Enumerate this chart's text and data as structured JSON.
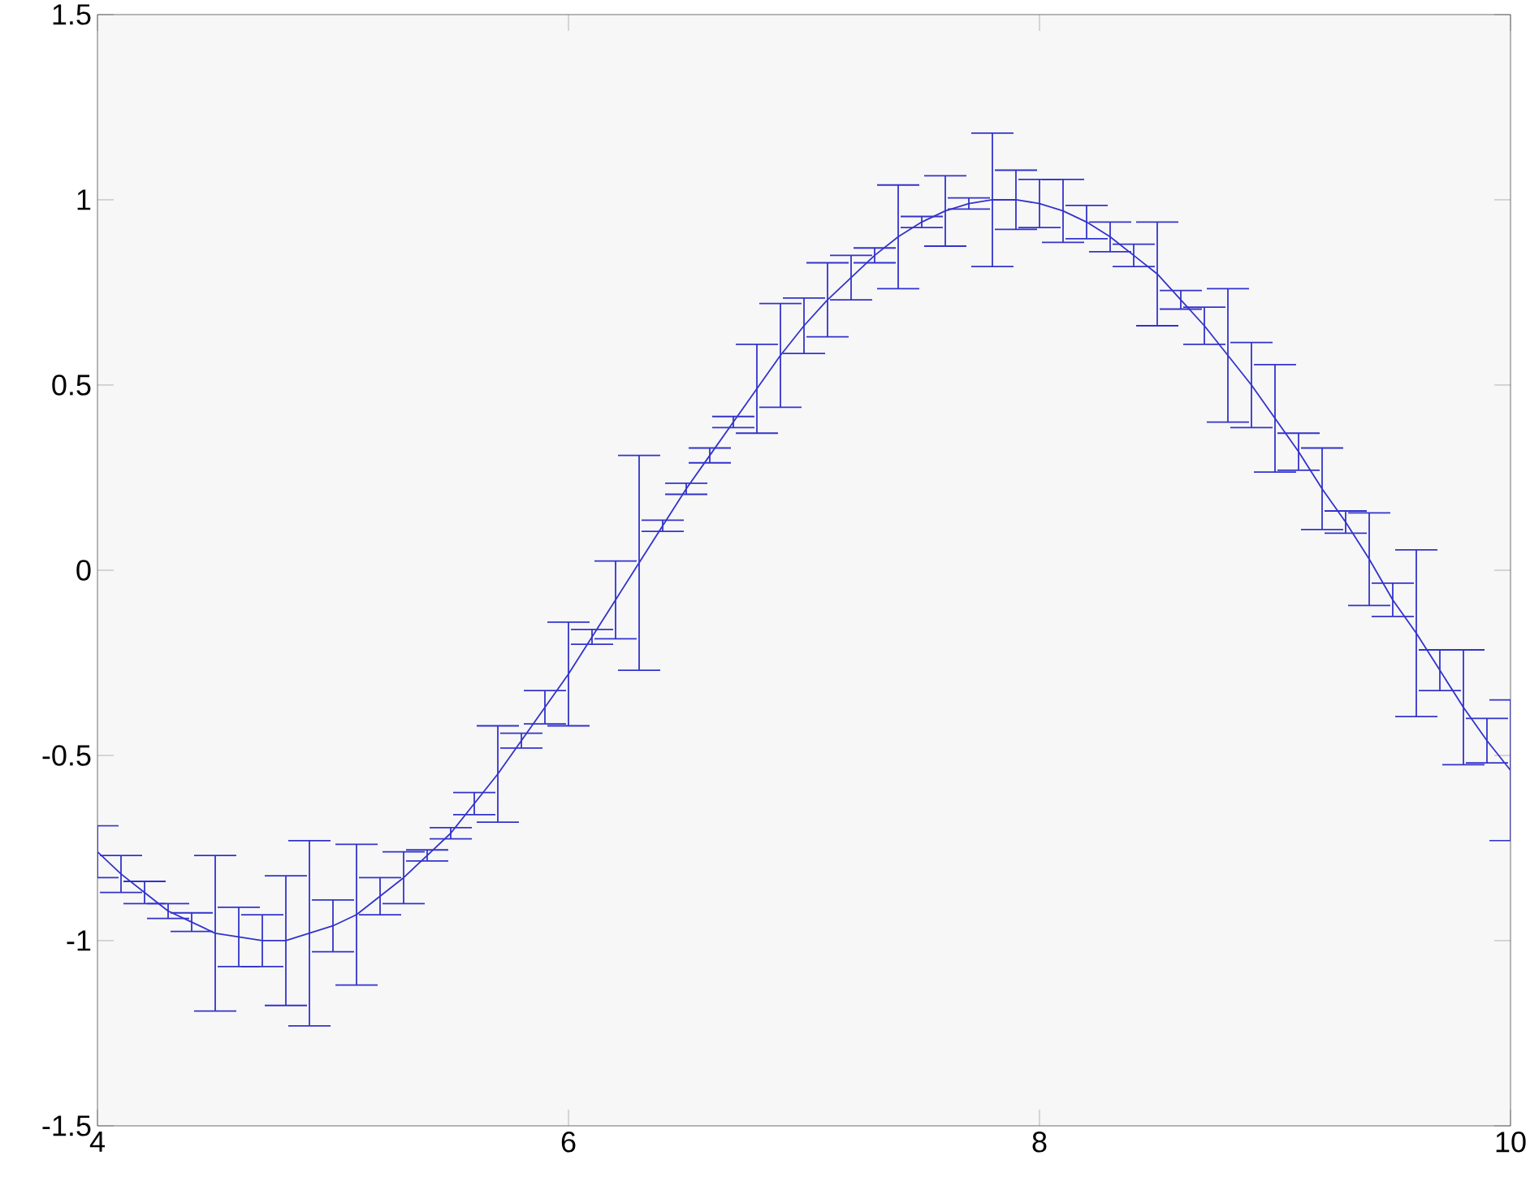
{
  "chart_data": {
    "type": "line",
    "x": [
      4.0,
      4.1,
      4.2,
      4.3,
      4.4,
      4.5,
      4.6,
      4.7,
      4.8,
      4.9,
      5.0,
      5.1,
      5.2,
      5.3,
      5.4,
      5.5,
      5.6,
      5.7,
      5.8,
      5.9,
      6.0,
      6.1,
      6.2,
      6.3,
      6.4,
      6.5,
      6.6,
      6.7,
      6.8,
      6.9,
      7.0,
      7.1,
      7.2,
      7.3,
      7.4,
      7.5,
      7.6,
      7.7,
      7.8,
      7.9,
      8.0,
      8.1,
      8.2,
      8.3,
      8.4,
      8.5,
      8.6,
      8.7,
      8.8,
      8.9,
      9.0,
      9.1,
      9.2,
      9.3,
      9.4,
      9.5,
      9.6,
      9.7,
      9.8,
      9.9,
      10.0
    ],
    "series": [
      {
        "color": "#3333cc",
        "values": [
          -0.76,
          -0.82,
          -0.87,
          -0.92,
          -0.95,
          -0.98,
          -0.99,
          -1.0,
          -1.0,
          -0.98,
          -0.96,
          -0.93,
          -0.88,
          -0.83,
          -0.77,
          -0.71,
          -0.63,
          -0.55,
          -0.46,
          -0.37,
          -0.28,
          -0.18,
          -0.08,
          0.02,
          0.12,
          0.22,
          0.31,
          0.4,
          0.49,
          0.58,
          0.66,
          0.73,
          0.79,
          0.85,
          0.9,
          0.94,
          0.97,
          0.99,
          1.0,
          1.0,
          0.99,
          0.97,
          0.94,
          0.9,
          0.85,
          0.8,
          0.73,
          0.66,
          0.58,
          0.5,
          0.41,
          0.32,
          0.22,
          0.13,
          0.03,
          -0.08,
          -0.17,
          -0.27,
          -0.37,
          -0.46,
          -0.54
        ],
        "errors": [
          0.07,
          0.05,
          0.03,
          0.02,
          0.025,
          0.21,
          0.08,
          0.07,
          0.175,
          0.25,
          0.07,
          0.19,
          0.05,
          0.07,
          0.015,
          0.015,
          0.03,
          0.13,
          0.02,
          0.045,
          0.14,
          0.02,
          0.105,
          0.29,
          0.015,
          0.015,
          0.02,
          0.015,
          0.12,
          0.14,
          0.075,
          0.1,
          0.06,
          0.02,
          0.14,
          0.015,
          0.095,
          0.015,
          0.18,
          0.08,
          0.065,
          0.085,
          0.045,
          0.04,
          0.03,
          0.14,
          0.025,
          0.05,
          0.18,
          0.115,
          0.145,
          0.05,
          0.11,
          0.03,
          0.125,
          0.045,
          0.225,
          0.055,
          0.155,
          0.06,
          0.19
        ]
      }
    ],
    "xlim": [
      4,
      10
    ],
    "ylim": [
      -1.5,
      1.5
    ],
    "xticks": [
      4,
      6,
      8,
      10
    ],
    "yticks": [
      -1.5,
      -1,
      -0.5,
      0,
      0.5,
      1,
      1.5
    ],
    "line_style": "solid"
  }
}
